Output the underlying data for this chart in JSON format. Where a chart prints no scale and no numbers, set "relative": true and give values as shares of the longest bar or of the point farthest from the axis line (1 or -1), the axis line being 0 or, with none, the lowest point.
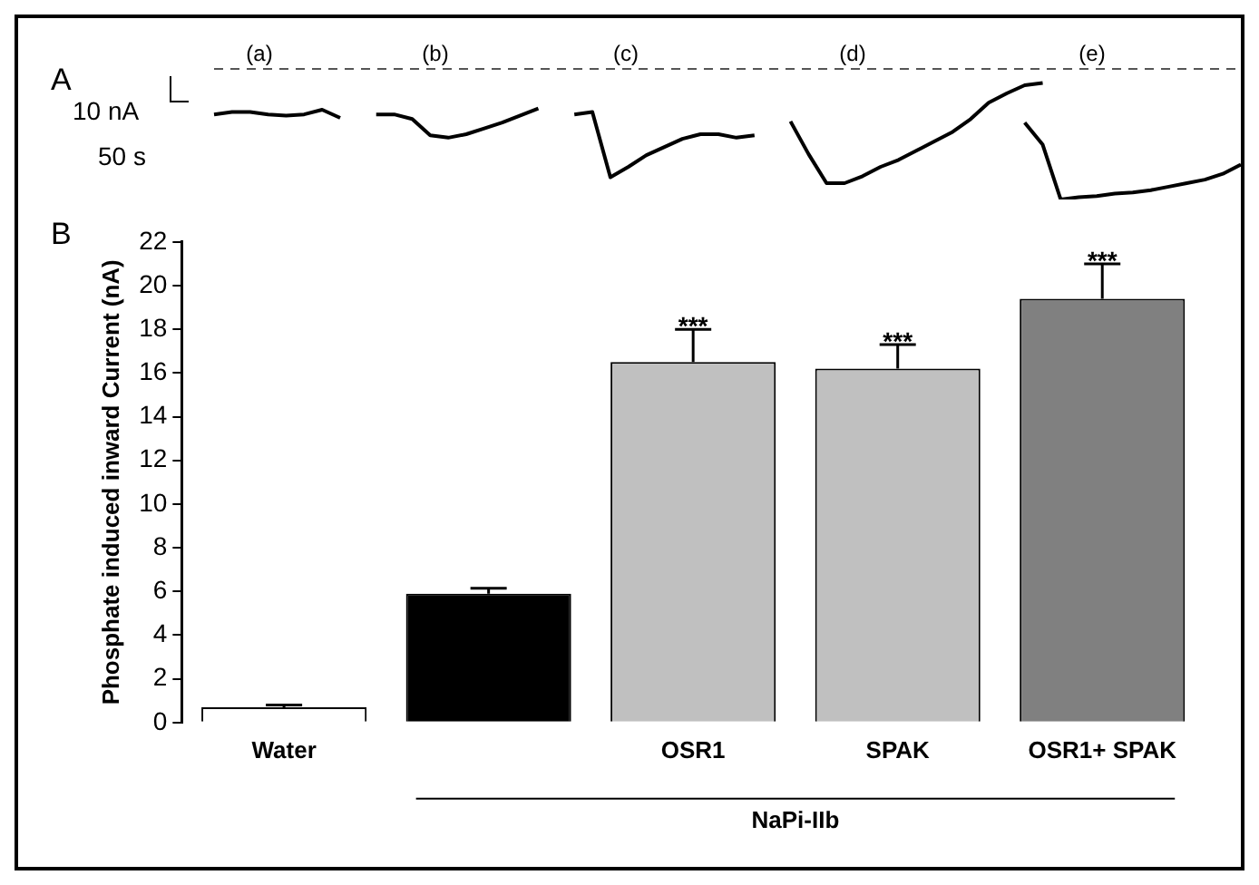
{
  "chart_data": [
    {
      "type": "line",
      "relative": true,
      "line_style": "solid",
      "marker": "none",
      "grid": false,
      "legend": false,
      "categories": [
        null,
        null,
        null,
        null,
        null,
        null,
        null,
        null,
        null,
        null,
        null,
        null,
        null,
        null,
        null,
        null,
        null,
        null,
        null,
        null,
        null,
        null,
        null,
        null,
        null,
        null,
        null,
        null,
        null,
        null,
        null,
        null,
        null,
        null,
        null,
        null,
        null,
        null,
        null,
        null,
        null,
        null,
        null,
        null,
        null,
        null,
        null,
        null,
        null,
        null,
        null,
        null,
        null,
        null,
        null,
        null,
        null,
        null
      ],
      "series": [
        {
          "color": "#000000",
          "values": [
            0.73,
            0.75,
            0.75,
            0.73,
            0.72,
            0.73,
            0.77,
            0.7,
            null,
            0.73,
            0.73,
            0.69,
            0.55,
            0.53,
            0.56,
            0.61,
            0.66,
            0.72,
            0.78,
            null,
            0.73,
            0.75,
            0.19,
            0.28,
            0.38,
            0.45,
            0.52,
            0.56,
            0.56,
            0.53,
            0.55,
            null,
            0.67,
            0.39,
            0.14,
            0.14,
            0.2,
            0.28,
            0.34,
            0.42,
            0.5,
            0.58,
            0.69,
            0.83,
            0.91,
            0.98,
            1.0,
            null,
            null,
            null,
            null,
            null,
            null,
            null,
            null,
            null,
            null,
            null
          ]
        },
        {
          "color": "#000000",
          "values": [
            null,
            null,
            null,
            null,
            null,
            null,
            null,
            null,
            null,
            null,
            null,
            null,
            null,
            null,
            null,
            null,
            null,
            null,
            null,
            null,
            null,
            null,
            null,
            null,
            null,
            null,
            null,
            null,
            null,
            null,
            null,
            null,
            null,
            null,
            null,
            null,
            null,
            null,
            null,
            null,
            null,
            null,
            null,
            null,
            null,
            0.66,
            0.47,
            0,
            0.02,
            0.03,
            0.05,
            0.06,
            0.08,
            0.11,
            0.14,
            0.17,
            0.22,
            0.3
          ]
        }
      ],
      "ref_lines": [
        {
          "axis": "y",
          "value": 1.12,
          "color": "#555555",
          "line_style": "dashed"
        }
      ],
      "annotations": [
        "A",
        "(a)",
        "(b)",
        "(c)",
        "(d)",
        "(e)",
        "10 nA",
        "50 s"
      ]
    },
    {
      "type": "bar",
      "ylabel": "Phosphate induced inward Current (nA)",
      "categories": [
        "Water",
        null,
        "OSR1",
        "SPAK",
        "OSR1+ SPAK"
      ],
      "values": [
        0.7,
        5.9,
        16.5,
        16.2,
        19.4
      ],
      "colors": [
        "#ffffff",
        "#000000",
        "#c0c0c0",
        "#c0c0c0",
        "#808080"
      ],
      "errors": [
        [
          0.7,
          0.8
        ],
        [
          5.9,
          6.15
        ],
        [
          16.5,
          18.0
        ],
        [
          16.2,
          17.3
        ],
        [
          19.4,
          21.0
        ]
      ],
      "ylim": [
        0,
        22
      ],
      "yticks": [
        0,
        2,
        4,
        6,
        8,
        10,
        12,
        14,
        16,
        18,
        20,
        22
      ],
      "grid": false,
      "legend": false,
      "annotations": [
        "B",
        "NaPi-IIb",
        {
          "text": "***",
          "x": "OSR1",
          "y": 18.0
        },
        {
          "text": "***",
          "x": "SPAK",
          "y": 17.3
        },
        {
          "text": "***",
          "x": "OSR1+ SPAK",
          "y": 21.0
        }
      ]
    }
  ]
}
